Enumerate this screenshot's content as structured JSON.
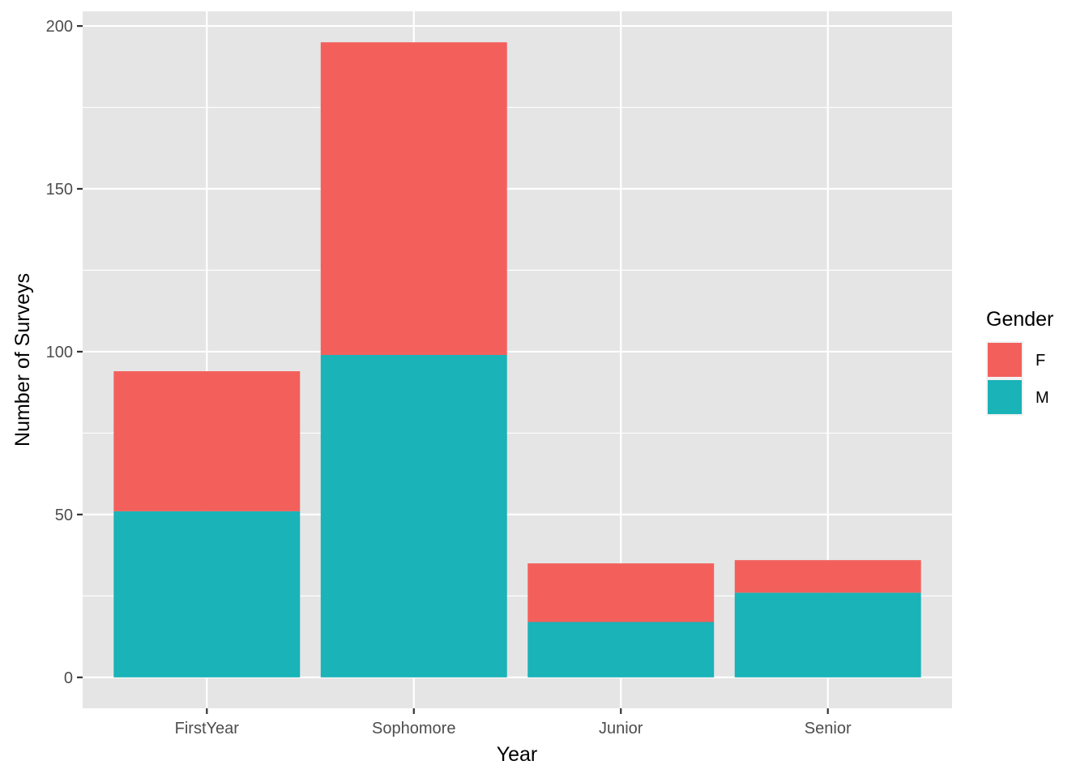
{
  "chart_data": {
    "type": "bar",
    "stacked": true,
    "categories": [
      "FirstYear",
      "Sophomore",
      "Junior",
      "Senior"
    ],
    "series": [
      {
        "name": "M",
        "values": [
          51,
          99,
          17,
          26
        ],
        "color": "#19b3b8"
      },
      {
        "name": "F",
        "values": [
          43,
          96,
          18,
          10
        ],
        "color": "#f3605c"
      }
    ],
    "xlabel": "Year",
    "ylabel": "Number of Surveys",
    "ylim": [
      -9.5,
      204.5
    ],
    "yticks": [
      0,
      50,
      100,
      150,
      200
    ],
    "grid": true,
    "legend": {
      "title": "Gender",
      "placement": "right",
      "items": [
        {
          "label": "F",
          "color": "#f3605c"
        },
        {
          "label": "M",
          "color": "#19b3b8"
        }
      ]
    },
    "colors": {
      "panel": "#e5e5e5",
      "grid": "#ffffff",
      "tick_text": "#4d4d4d"
    }
  }
}
